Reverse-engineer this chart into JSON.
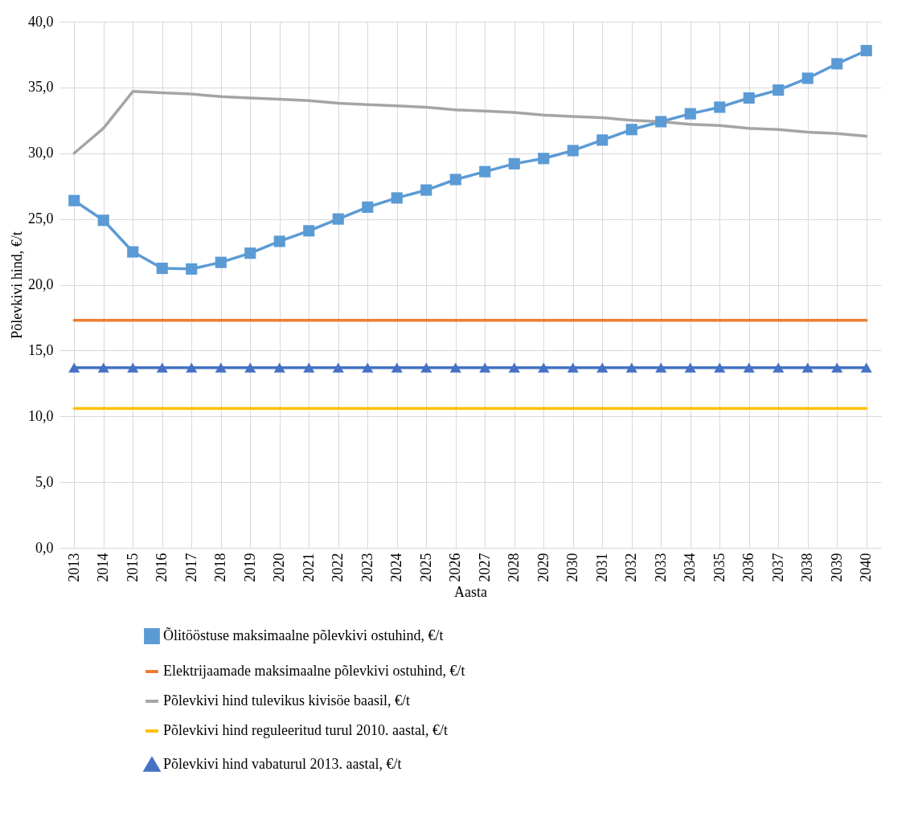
{
  "chart_data": {
    "type": "line",
    "xlabel": "Aasta",
    "ylabel": "Põlevkivi hind, €/t",
    "categories": [
      "2013",
      "2014",
      "2015",
      "2016",
      "2017",
      "2018",
      "2019",
      "2020",
      "2021",
      "2022",
      "2023",
      "2024",
      "2025",
      "2026",
      "2027",
      "2028",
      "2029",
      "2030",
      "2031",
      "2032",
      "2033",
      "2034",
      "2035",
      "2036",
      "2037",
      "2038",
      "2039",
      "2040"
    ],
    "ylim": [
      0,
      40
    ],
    "yticks": [
      {
        "value": 0,
        "label": "0,0"
      },
      {
        "value": 5,
        "label": "5,0"
      },
      {
        "value": 10,
        "label": "10,0"
      },
      {
        "value": 15,
        "label": "15,0"
      },
      {
        "value": 20,
        "label": "20,0"
      },
      {
        "value": 25,
        "label": "25,0"
      },
      {
        "value": 30,
        "label": "30,0"
      },
      {
        "value": 35,
        "label": "35,0"
      },
      {
        "value": 40,
        "label": "40,0"
      }
    ],
    "grid": true,
    "legend": "bottom",
    "line_style": "solid",
    "series": [
      {
        "name": "Õlitööstuse maksimaalne põlevkivi ostuhind, €/t",
        "color": "#5b9bd5",
        "marker": "square",
        "values": [
          26.4,
          24.9,
          22.5,
          21.25,
          21.2,
          21.7,
          22.4,
          23.3,
          24.1,
          25.0,
          25.9,
          26.6,
          27.2,
          28.0,
          28.6,
          29.2,
          29.6,
          30.2,
          31.0,
          31.8,
          32.4,
          33.0,
          33.5,
          34.2,
          34.8,
          35.7,
          36.8,
          37.8
        ]
      },
      {
        "name": "Elektrijaamade maksimaalne põlevkivi ostuhind, €/t",
        "color": "#ed7d31",
        "marker": "none",
        "values": [
          17.3,
          17.3,
          17.3,
          17.3,
          17.3,
          17.3,
          17.3,
          17.3,
          17.3,
          17.3,
          17.3,
          17.3,
          17.3,
          17.3,
          17.3,
          17.3,
          17.3,
          17.3,
          17.3,
          17.3,
          17.3,
          17.3,
          17.3,
          17.3,
          17.3,
          17.3,
          17.3,
          17.3
        ]
      },
      {
        "name": "Põlevkivi hind tulevikus kivisöe baasil, €/t",
        "color": "#a5a5a5",
        "marker": "none",
        "values": [
          30.0,
          31.9,
          34.7,
          34.6,
          34.5,
          34.3,
          34.2,
          34.1,
          34.0,
          33.8,
          33.7,
          33.6,
          33.5,
          33.3,
          33.2,
          33.1,
          32.9,
          32.8,
          32.7,
          32.5,
          32.4,
          32.2,
          32.1,
          31.9,
          31.8,
          31.6,
          31.5,
          31.3
        ]
      },
      {
        "name": "Põlevkivi hind reguleeritud turul 2010. aastal, €/t",
        "color": "#ffc000",
        "marker": "none",
        "values": [
          10.6,
          10.6,
          10.6,
          10.6,
          10.6,
          10.6,
          10.6,
          10.6,
          10.6,
          10.6,
          10.6,
          10.6,
          10.6,
          10.6,
          10.6,
          10.6,
          10.6,
          10.6,
          10.6,
          10.6,
          10.6,
          10.6,
          10.6,
          10.6,
          10.6,
          10.6,
          10.6,
          10.6
        ]
      },
      {
        "name": "Põlevkivi hind vabaturul 2013. aastal, €/t",
        "color": "#4472c4",
        "marker": "triangle",
        "values": [
          13.7,
          13.7,
          13.7,
          13.7,
          13.7,
          13.7,
          13.7,
          13.7,
          13.7,
          13.7,
          13.7,
          13.7,
          13.7,
          13.7,
          13.7,
          13.7,
          13.7,
          13.7,
          13.7,
          13.7,
          13.7,
          13.7,
          13.7,
          13.7,
          13.7,
          13.7,
          13.7,
          13.7
        ]
      }
    ]
  }
}
